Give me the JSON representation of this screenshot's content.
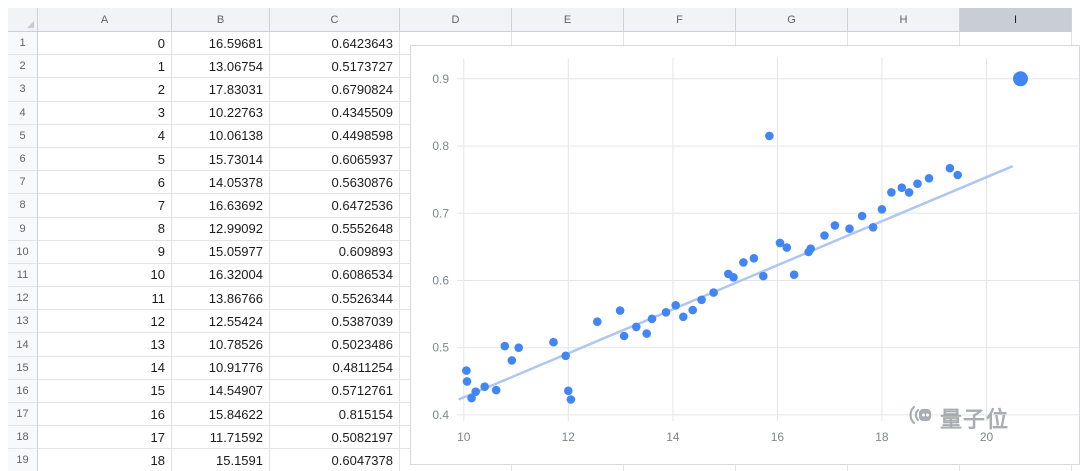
{
  "spreadsheet": {
    "column_headers": [
      "A",
      "B",
      "C",
      "D",
      "E",
      "F",
      "G",
      "H",
      "I"
    ],
    "selected_column": "I",
    "rows": [
      [
        "1",
        "0",
        "16.59681",
        "0.6423643"
      ],
      [
        "2",
        "1",
        "13.06754",
        "0.5173727"
      ],
      [
        "3",
        "2",
        "17.83031",
        "0.6790824"
      ],
      [
        "4",
        "3",
        "10.22763",
        "0.4345509"
      ],
      [
        "5",
        "4",
        "10.06138",
        "0.4498598"
      ],
      [
        "6",
        "5",
        "15.73014",
        "0.6065937"
      ],
      [
        "7",
        "6",
        "14.05378",
        "0.5630876"
      ],
      [
        "8",
        "7",
        "16.63692",
        "0.6472536"
      ],
      [
        "9",
        "8",
        "12.99092",
        "0.5552648"
      ],
      [
        "10",
        "9",
        "15.05977",
        "0.609893"
      ],
      [
        "11",
        "10",
        "16.32004",
        "0.6086534"
      ],
      [
        "12",
        "11",
        "13.86766",
        "0.5526344"
      ],
      [
        "13",
        "12",
        "12.55424",
        "0.5387039"
      ],
      [
        "14",
        "13",
        "10.78526",
        "0.5023486"
      ],
      [
        "15",
        "14",
        "10.91776",
        "0.4811254"
      ],
      [
        "16",
        "15",
        "14.54907",
        "0.5712761"
      ],
      [
        "17",
        "16",
        "15.84622",
        "0.815154"
      ],
      [
        "18",
        "17",
        "11.71592",
        "0.5082197"
      ],
      [
        "19",
        "18",
        "15.1591",
        "0.6047378"
      ]
    ]
  },
  "chart_data": {
    "type": "scatter",
    "title": "",
    "xlabel": "",
    "ylabel": "",
    "x_ticks": [
      10,
      12,
      14,
      16,
      18,
      20
    ],
    "y_ticks": [
      0.4,
      0.5,
      0.6,
      0.7,
      0.8,
      0.9
    ],
    "xlim": [
      9.87,
      21.77
    ],
    "ylim": [
      0.391,
      0.931
    ],
    "grid": true,
    "legend": "none",
    "point_color": "#4285f4",
    "trend_color": "#aec6f2",
    "trendline": {
      "x": [
        9.9,
        20.5
      ],
      "y": [
        0.423,
        0.77
      ]
    },
    "points": [
      [
        16.59681,
        0.6423643
      ],
      [
        13.06754,
        0.5173727
      ],
      [
        17.83031,
        0.6790824
      ],
      [
        10.22763,
        0.4345509
      ],
      [
        10.06138,
        0.4498598
      ],
      [
        15.73014,
        0.6065937
      ],
      [
        14.05378,
        0.5630876
      ],
      [
        16.63692,
        0.6472536
      ],
      [
        12.99092,
        0.5552648
      ],
      [
        15.05977,
        0.609893
      ],
      [
        16.32004,
        0.6086534
      ],
      [
        13.86766,
        0.5526344
      ],
      [
        12.55424,
        0.5387039
      ],
      [
        10.78526,
        0.5023486
      ],
      [
        10.91776,
        0.4811254
      ],
      [
        14.54907,
        0.5712761
      ],
      [
        15.84622,
        0.815154
      ],
      [
        11.71592,
        0.5082197
      ],
      [
        15.1591,
        0.6047378
      ],
      [
        10.05,
        0.466
      ],
      [
        10.15,
        0.425
      ],
      [
        10.4,
        0.442
      ],
      [
        10.62,
        0.437
      ],
      [
        11.05,
        0.5
      ],
      [
        11.95,
        0.488
      ],
      [
        12.0,
        0.436
      ],
      [
        12.05,
        0.423
      ],
      [
        13.3,
        0.531
      ],
      [
        13.5,
        0.521
      ],
      [
        13.6,
        0.543
      ],
      [
        14.2,
        0.546
      ],
      [
        14.38,
        0.556
      ],
      [
        14.78,
        0.582
      ],
      [
        15.35,
        0.627
      ],
      [
        15.55,
        0.633
      ],
      [
        16.05,
        0.656
      ],
      [
        16.18,
        0.649
      ],
      [
        16.9,
        0.667
      ],
      [
        17.1,
        0.682
      ],
      [
        17.38,
        0.677
      ],
      [
        17.62,
        0.696
      ],
      [
        18.0,
        0.706
      ],
      [
        18.18,
        0.731
      ],
      [
        18.38,
        0.738
      ],
      [
        18.52,
        0.731
      ],
      [
        18.68,
        0.744
      ],
      [
        18.9,
        0.752
      ],
      [
        19.3,
        0.767
      ],
      [
        19.45,
        0.757
      ],
      [
        20.65,
        0.9,
        7.5
      ]
    ]
  },
  "watermark": {
    "text": "量子位"
  }
}
